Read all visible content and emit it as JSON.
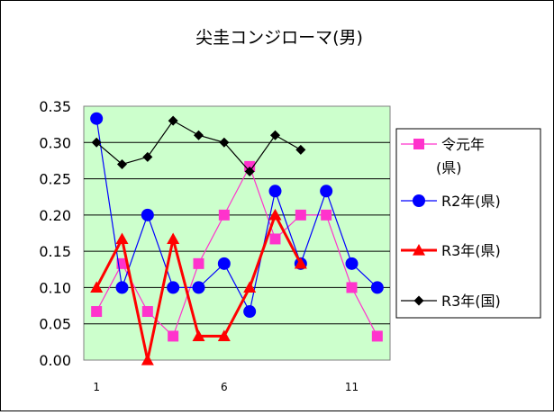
{
  "chart_data": {
    "type": "line",
    "title": "尖圭コンジローマ(男)",
    "xlabel": "",
    "ylabel": "",
    "x": [
      1,
      2,
      3,
      4,
      5,
      6,
      7,
      8,
      9,
      10,
      11,
      12
    ],
    "x_tick_labels": [
      {
        "x": 1,
        "label": "1"
      },
      {
        "x": 6,
        "label": "6"
      },
      {
        "x": 11,
        "label": "11"
      }
    ],
    "xlim": [
      0.5,
      12.5
    ],
    "ylim": [
      0,
      0.35
    ],
    "y_ticks": [
      "0.00",
      "0.05",
      "0.10",
      "0.15",
      "0.20",
      "0.25",
      "0.30",
      "0.35"
    ],
    "grid": "horizontal",
    "plot_background": "#ccffcc",
    "legend_position": "right",
    "series": [
      {
        "name": "令元年\n(県)",
        "color": "#ff33cc",
        "marker": "square",
        "values": [
          0.067,
          0.133,
          0.067,
          0.033,
          0.133,
          0.2,
          0.267,
          0.167,
          0.2,
          0.2,
          0.1,
          0.033
        ]
      },
      {
        "name": "R2年(県)",
        "color": "#0000ff",
        "marker": "circle",
        "values": [
          0.333,
          0.1,
          0.2,
          0.1,
          0.1,
          0.133,
          0.067,
          0.233,
          0.133,
          0.233,
          0.133,
          0.1
        ]
      },
      {
        "name": "R3年(県)",
        "color": "#ff0000",
        "marker": "triangle",
        "values": [
          0.1,
          0.167,
          0.0,
          0.167,
          0.033,
          0.033,
          0.1,
          0.2,
          0.133,
          null,
          null,
          null
        ]
      },
      {
        "name": "R3年(国)",
        "color": "#000000",
        "marker": "diamond",
        "values": [
          0.3,
          0.27,
          0.28,
          0.33,
          0.31,
          0.3,
          0.26,
          0.31,
          0.29,
          null,
          null,
          null
        ]
      }
    ]
  }
}
